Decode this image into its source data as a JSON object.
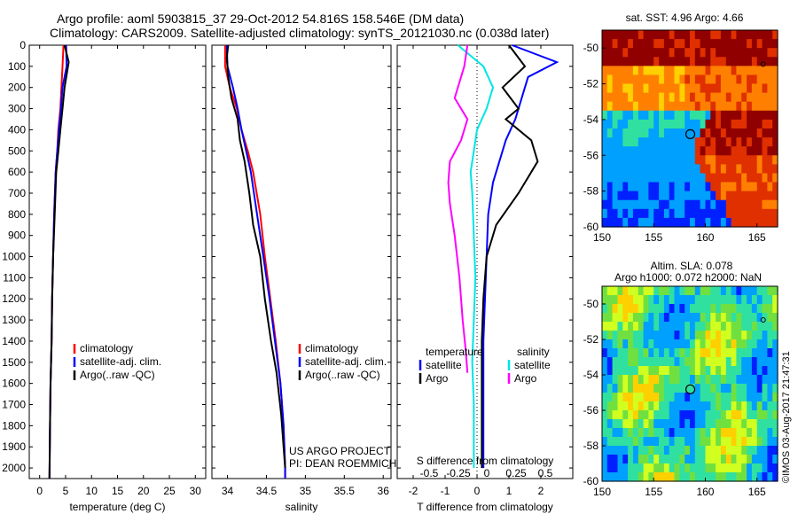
{
  "header": {
    "line1": "Argo profile: aoml 5903815_37 29-Oct-2012 54.816S 158.546E (DM data)",
    "line2": "Climatology: CARS2009. Satellite-adjusted climatology: synTS_20121030.nc (0.038d later)"
  },
  "colors": {
    "climatology": "#ff0000",
    "satellite": "#0000ff",
    "argo": "#000000",
    "sat_salinity": "#00e5e5",
    "argo_salinity": "#ff00ff"
  },
  "chart_data": [
    {
      "type": "line",
      "id": "temperature",
      "xlabel": "temperature (deg C)",
      "ylabel": "",
      "xlim": [
        -2,
        32
      ],
      "ylim": [
        2050,
        0
      ],
      "xticks": [
        0,
        5,
        10,
        15,
        20,
        25,
        30
      ],
      "yticks": [
        0,
        100,
        200,
        300,
        400,
        500,
        600,
        700,
        800,
        900,
        1000,
        1100,
        1200,
        1300,
        1400,
        1500,
        1600,
        1700,
        1800,
        1900,
        2000
      ],
      "legend": [
        "climatology",
        "satellite-adj. clim.",
        "Argo(..raw -QC)"
      ],
      "legend_position": "center-right",
      "series": [
        {
          "name": "climatology",
          "x": [
            4.6,
            4.4,
            4.2,
            4.0,
            3.6,
            3.4,
            3.1,
            2.8,
            2.6,
            2.4,
            2.3,
            2.1,
            2.0,
            1.9
          ],
          "y": [
            0,
            100,
            200,
            300,
            400,
            500,
            600,
            800,
            1000,
            1200,
            1400,
            1600,
            1800,
            2050
          ]
        },
        {
          "name": "satellite-adj. clim.",
          "x": [
            5.1,
            5.2,
            4.4,
            4.1,
            3.7,
            3.4,
            3.1,
            2.8,
            2.6,
            2.4,
            2.3,
            2.1,
            2.0,
            1.9
          ],
          "y": [
            0,
            100,
            200,
            300,
            400,
            500,
            600,
            800,
            1000,
            1200,
            1400,
            1600,
            1800,
            2050
          ]
        },
        {
          "name": "Argo(..raw -QC)",
          "x": [
            4.8,
            5.6,
            4.8,
            4.4,
            4.0,
            3.6,
            3.2,
            2.9,
            2.6,
            2.4,
            2.3,
            2.1,
            2.0,
            1.9
          ],
          "y": [
            0,
            80,
            200,
            300,
            400,
            500,
            600,
            800,
            1000,
            1200,
            1400,
            1600,
            1800,
            2050
          ]
        }
      ]
    },
    {
      "type": "line",
      "id": "salinity",
      "xlabel": "salinity",
      "xlim": [
        33.8,
        36.1
      ],
      "ylim": [
        2050,
        0
      ],
      "xticks": [
        34,
        34.5,
        35,
        35.5,
        36
      ],
      "legend": [
        "climatology",
        "satellite-adj. clim.",
        "Argo(..raw -QC)"
      ],
      "legend_position": "center-right",
      "annotation": [
        "US ARGO PROJECT",
        "PI: DEAN ROEMMICH"
      ],
      "series": [
        {
          "name": "climatology",
          "x": [
            33.97,
            33.97,
            34.03,
            34.12,
            34.18,
            34.26,
            34.33,
            34.42,
            34.48,
            34.55,
            34.62,
            34.68,
            34.72,
            34.74,
            34.74
          ],
          "y": [
            0,
            100,
            200,
            300,
            400,
            500,
            600,
            800,
            1000,
            1200,
            1400,
            1600,
            1800,
            2000,
            2050
          ]
        },
        {
          "name": "satellite-adj. clim.",
          "x": [
            33.99,
            34.0,
            34.07,
            34.13,
            34.18,
            34.24,
            34.3,
            34.38,
            34.46,
            34.54,
            34.61,
            34.68,
            34.72,
            34.74,
            34.74
          ],
          "y": [
            0,
            100,
            200,
            300,
            400,
            500,
            600,
            800,
            1000,
            1200,
            1400,
            1600,
            1800,
            2000,
            2050
          ]
        },
        {
          "name": "Argo(..raw -QC)",
          "x": [
            34.01,
            33.99,
            34.01,
            34.05,
            34.13,
            34.16,
            34.22,
            34.28,
            34.33,
            34.42,
            34.48,
            34.56,
            34.63,
            34.69,
            34.73,
            34.74
          ],
          "y": [
            0,
            60,
            150,
            250,
            350,
            450,
            550,
            700,
            850,
            1000,
            1200,
            1400,
            1550,
            1750,
            1950,
            2000
          ]
        }
      ]
    },
    {
      "type": "line",
      "id": "differences",
      "xlabel": "T difference from climatology",
      "x2label": "S difference from climatology",
      "xlim": [
        -2.5,
        3
      ],
      "xticks": [
        -2,
        -1,
        0,
        1,
        2
      ],
      "x2ticks": [
        "-0.5",
        "-0.25",
        "0",
        "0.25",
        "0.5"
      ],
      "ylim": [
        2050,
        0
      ],
      "legend_headers": [
        "temperature",
        "salinity"
      ],
      "legend": [
        "satellite",
        "Argo",
        "satellite",
        "Argo"
      ],
      "legend_position": "lower-center",
      "series": [
        {
          "name": "satellite",
          "group": "temperature",
          "x": [
            1.1,
            2.5,
            1.6,
            1.4,
            1.2,
            0.9,
            0.7,
            0.5,
            0.35,
            0.3,
            0.25,
            0.2,
            0.2,
            0.2
          ],
          "y": [
            0,
            80,
            150,
            250,
            350,
            450,
            550,
            650,
            800,
            1000,
            1200,
            1400,
            1600,
            2000
          ]
        },
        {
          "name": "Argo",
          "group": "temperature",
          "x": [
            1.0,
            1.5,
            0.8,
            1.3,
            0.9,
            1.7,
            1.9,
            1.3,
            0.6,
            0.3,
            0.2,
            0.15,
            0.15,
            0.15
          ],
          "y": [
            0,
            100,
            200,
            300,
            350,
            450,
            550,
            700,
            850,
            1000,
            1200,
            1400,
            1600,
            2000
          ]
        },
        {
          "name": "satellite",
          "group": "salinity",
          "x": [
            -0.6,
            0.2,
            0.5,
            0.3,
            0.0,
            -0.1,
            -0.2,
            -0.15,
            -0.1,
            -0.05,
            -0.1,
            -0.15,
            -0.1,
            -0.1
          ],
          "y": [
            0,
            100,
            200,
            300,
            400,
            500,
            600,
            700,
            900,
            1100,
            1300,
            1500,
            1700,
            2000
          ]
        },
        {
          "name": "Argo",
          "group": "salinity",
          "x": [
            -0.3,
            -0.4,
            -0.7,
            -0.3,
            -0.5,
            -0.85,
            -0.9,
            -0.85,
            -0.7,
            -0.55,
            -0.45,
            -0.35,
            -0.3
          ],
          "y": [
            0,
            100,
            250,
            350,
            450,
            550,
            650,
            750,
            900,
            1100,
            1300,
            1450,
            1550
          ]
        }
      ]
    },
    {
      "type": "heatmap",
      "id": "sst_map",
      "title": "sat. SST: 4.96 Argo: 4.66",
      "xlim": [
        150,
        167
      ],
      "ylim": [
        -60,
        -49
      ],
      "xticks": [
        150,
        155,
        160,
        165
      ],
      "yticks": [
        -50,
        -52,
        -54,
        -56,
        -58,
        -60
      ],
      "marker": {
        "lon": 158.546,
        "lat": -54.816
      }
    },
    {
      "type": "heatmap",
      "id": "sla_map",
      "title": "Altim. SLA: 0.078",
      "subtitle": "Argo h1000: 0.072 h2000: NaN",
      "xlim": [
        150,
        167
      ],
      "ylim": [
        -60,
        -49
      ],
      "xticks": [
        150,
        155,
        160,
        165
      ],
      "yticks": [
        -50,
        -52,
        -54,
        -56,
        -58,
        -60
      ],
      "marker": {
        "lon": 158.546,
        "lat": -54.816
      }
    }
  ],
  "credit": "©IMOS 03-Aug-2017 21:47:31"
}
